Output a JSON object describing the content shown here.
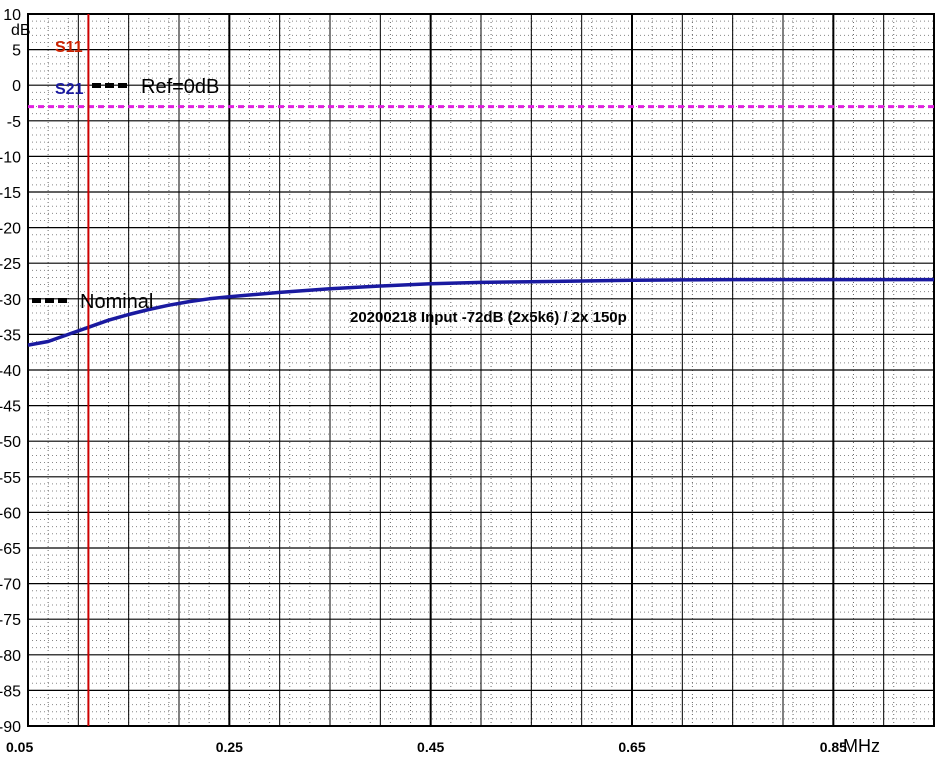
{
  "chart_data": {
    "type": "line",
    "title": "",
    "xlabel": "",
    "ylabel": "",
    "x_unit": "MHz",
    "y_unit": "dB",
    "xlim": [
      0.05,
      0.95
    ],
    "ylim": [
      -90,
      10
    ],
    "x_ticks": [
      "0.05",
      "0.25",
      "0.45",
      "0.65",
      "0.85"
    ],
    "y_ticks": [
      "10",
      "5",
      "0",
      "-5",
      "-10",
      "-15",
      "-20",
      "-25",
      "-30",
      "-35",
      "-40",
      "-45",
      "-50",
      "-55",
      "-60",
      "-65",
      "-70",
      "-75",
      "-80",
      "-85",
      "-90"
    ],
    "annotation": "20200218 Input -72dB (2x5k6) / 2x 150p",
    "legend": {
      "ref": "Ref=0dB",
      "nominal": "Nominal"
    },
    "marker": {
      "x": 0.11,
      "color": "#cc0000"
    },
    "series": [
      {
        "name": "S11",
        "color": "#cc0000",
        "x": [],
        "y": []
      },
      {
        "name": "S21",
        "color": "#1a1aa0",
        "x": [
          0.05,
          0.07,
          0.09,
          0.11,
          0.13,
          0.15,
          0.17,
          0.19,
          0.21,
          0.23,
          0.25,
          0.3,
          0.35,
          0.4,
          0.45,
          0.5,
          0.55,
          0.6,
          0.65,
          0.7,
          0.75,
          0.8,
          0.85,
          0.9,
          0.95
        ],
        "y": [
          -36.5,
          -36.0,
          -35.0,
          -34.0,
          -33.0,
          -32.2,
          -31.5,
          -30.9,
          -30.4,
          -30.0,
          -29.7,
          -29.1,
          -28.6,
          -28.2,
          -27.9,
          -27.7,
          -27.6,
          -27.5,
          -27.4,
          -27.35,
          -27.3,
          -27.3,
          -27.3,
          -27.3,
          -27.3
        ]
      },
      {
        "name": "Ref",
        "color": "#e020e0",
        "style": "dashed",
        "x": [
          0.05,
          0.95
        ],
        "y": [
          -3,
          -3
        ]
      }
    ],
    "grid": true
  }
}
